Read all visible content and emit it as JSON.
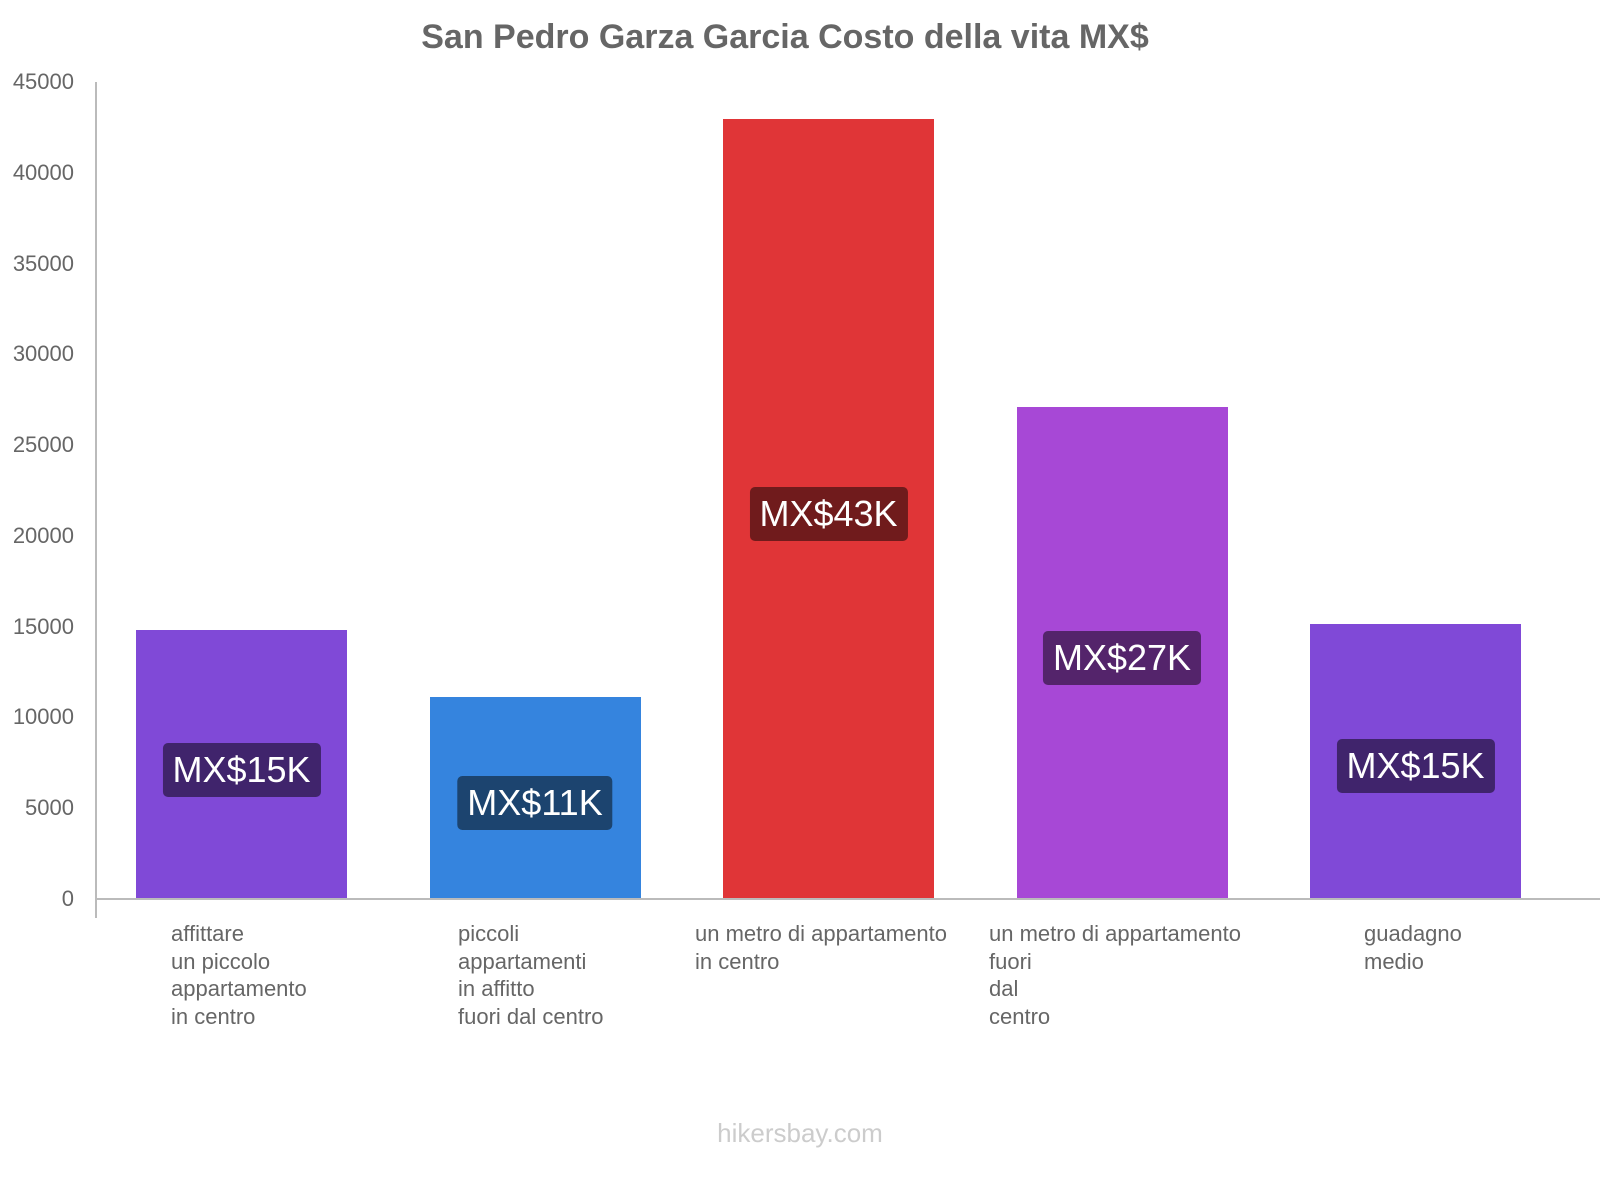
{
  "chart_data": {
    "type": "bar",
    "title": "San Pedro Garza Garcia Costo della vita MX$",
    "xlabel": "",
    "ylabel": "",
    "ylim": [
      0,
      45000
    ],
    "yticks": [
      "45000",
      "40000",
      "35000",
      "30000",
      "25000",
      "20000",
      "15000",
      "10000",
      "5000",
      "0"
    ],
    "grid": false,
    "legend": null,
    "categories": [
      "affittare\nun piccolo\nappartamento\nin centro",
      "piccoli\nappartamenti\nin affitto\nfuori dal centro",
      "un metro di appartamento\nin centro",
      "un metro di appartamento\nfuori\ndal\ncentro",
      "guadagno\nmedio"
    ],
    "values": [
      14800,
      11100,
      42950,
      27100,
      15150
    ],
    "data_labels": [
      "MX$15K",
      "MX$11K",
      "MX$43K",
      "MX$27K",
      "MX$15K"
    ],
    "colors": [
      "#8049d7",
      "#3584de",
      "#e03537",
      "#a748d6",
      "#8049d7"
    ],
    "label_colors": [
      "#40246c",
      "#1c446f",
      "#701b1c",
      "#54246b",
      "#40246c"
    ]
  },
  "footer": "hikersbay.com"
}
